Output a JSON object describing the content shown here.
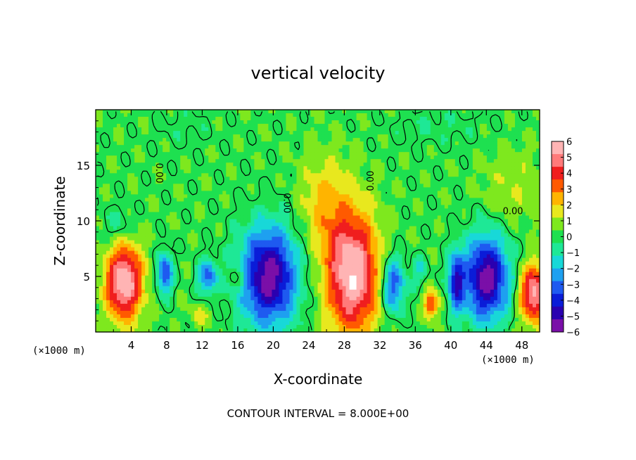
{
  "chart_data": {
    "type": "heatmap",
    "title": "vertical velocity",
    "xlabel": "X-coordinate",
    "ylabel": "Z-coordinate",
    "x_unit_left": "(×1000 m)",
    "x_unit_right": "(×1000 m)",
    "xlim": [
      0,
      50
    ],
    "ylim": [
      0,
      20
    ],
    "xticks": [
      4,
      8,
      12,
      16,
      20,
      24,
      28,
      32,
      36,
      40,
      44,
      48
    ],
    "yticks": [
      5,
      10,
      15
    ],
    "colorbar": {
      "ticks": [
        6,
        5,
        4,
        3,
        2,
        1,
        0,
        -1,
        -2,
        -3,
        -4,
        -5,
        -6
      ],
      "min": -6,
      "max": 6,
      "colors": [
        "#7a0fa8",
        "#2a00b0",
        "#0a1cd8",
        "#1e5af0",
        "#1ea0f0",
        "#18d8d8",
        "#1ee896",
        "#1ee050",
        "#7ee81e",
        "#e8e81e",
        "#ffb400",
        "#ff5a00",
        "#f01e1e",
        "#ff7a7a",
        "#ffb4b4"
      ]
    },
    "contour_labels": [
      {
        "text": "0.00",
        "x": 6.8,
        "y": 14.3,
        "rotate": 90
      },
      {
        "text": "0.00",
        "x": 21.2,
        "y": 11.6,
        "rotate": 90
      },
      {
        "text": "0.00",
        "x": 31.3,
        "y": 13.6,
        "rotate": -90
      },
      {
        "text": "0.00",
        "x": 47.0,
        "y": 10.6,
        "rotate": 0
      }
    ],
    "features": [
      {
        "x": 3.2,
        "z": 4.5,
        "rx": 2.4,
        "rz": 4.0,
        "w": 6.0
      },
      {
        "x": 28.9,
        "z": 5.2,
        "rx": 3.5,
        "rz": 6.3,
        "w": 6.0
      },
      {
        "x": 25.8,
        "z": 11.5,
        "rx": 3.4,
        "rz": 5.0,
        "w": 1.8
      },
      {
        "x": 49.3,
        "z": 3.5,
        "rx": 1.8,
        "rz": 3.0,
        "w": 5.5
      },
      {
        "x": 37.8,
        "z": 2.5,
        "rx": 1.0,
        "rz": 1.5,
        "w": 3.5
      },
      {
        "x": 47.0,
        "z": 13.0,
        "rx": 4.0,
        "rz": 4.0,
        "w": 0.9
      },
      {
        "x": 16.3,
        "z": 5.0,
        "rx": 1.2,
        "rz": 1.4,
        "w": 1.5
      },
      {
        "x": 11.8,
        "z": 1.5,
        "rx": 1.4,
        "rz": 1.2,
        "w": 1.2
      },
      {
        "x": 19.5,
        "z": 5.0,
        "rx": 3.8,
        "rz": 5.2,
        "w": -6.0
      },
      {
        "x": 44.0,
        "z": 4.8,
        "rx": 3.0,
        "rz": 4.5,
        "w": -6.0
      },
      {
        "x": 33.5,
        "z": 4.2,
        "rx": 1.6,
        "rz": 3.0,
        "w": -3.8
      },
      {
        "x": 40.6,
        "z": 4.5,
        "rx": 1.0,
        "rz": 3.0,
        "w": -4.5
      },
      {
        "x": 7.8,
        "z": 5.3,
        "rx": 1.0,
        "rz": 2.2,
        "w": -4.0
      },
      {
        "x": 12.6,
        "z": 5.0,
        "rx": 1.2,
        "rz": 1.8,
        "w": -3.5
      },
      {
        "x": 2.5,
        "z": 9.5,
        "rx": 2.0,
        "rz": 2.0,
        "w": -1.2
      },
      {
        "x": 36.5,
        "z": 5.5,
        "rx": 1.0,
        "rz": 1.5,
        "w": -1.5
      },
      {
        "x": 38.5,
        "z": 18.5,
        "rx": 6.0,
        "rz": 2.0,
        "w": -0.6
      },
      {
        "x": 10.0,
        "z": 18.5,
        "rx": 3.5,
        "rz": 2.0,
        "w": -0.5
      }
    ]
  },
  "footer": {
    "contour_interval": "CONTOUR INTERVAL = 8.000E+00"
  }
}
